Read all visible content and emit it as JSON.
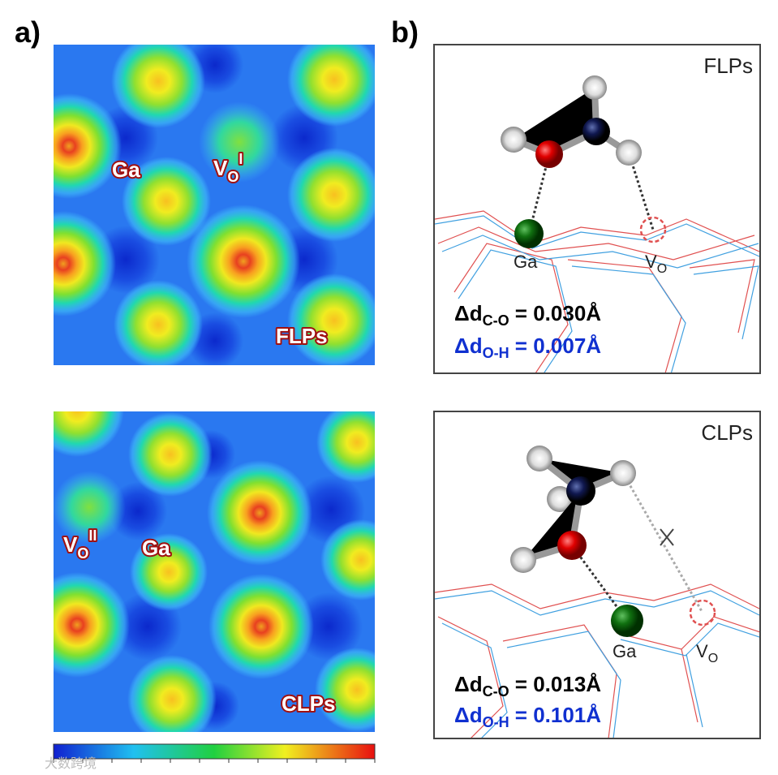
{
  "panel_a": {
    "label": "a)",
    "top": {
      "ga": "Ga",
      "vacancy": {
        "main": "V",
        "sub": "O",
        "sup": "I"
      },
      "tag": "FLPs"
    },
    "bottom": {
      "ga": "Ga",
      "vacancy": {
        "main": "V",
        "sub": "O",
        "sup": "II"
      },
      "tag": "CLPs"
    }
  },
  "panel_b": {
    "label": "b)",
    "top": {
      "tag": "FLPs",
      "ga": "Ga",
      "vacancy": {
        "main": "V",
        "sub": "O"
      },
      "d_co": {
        "delta": "Δd",
        "sub": "C-O",
        "value": " = 0.030Å"
      },
      "d_oh": {
        "delta": "Δd",
        "sub": "O-H",
        "value": " = 0.007Å"
      }
    },
    "bottom": {
      "tag": "CLPs",
      "ga": "Ga",
      "vacancy": {
        "main": "V",
        "sub": "O"
      },
      "d_co": {
        "delta": "Δd",
        "sub": "C-O",
        "value": " = 0.013Å"
      },
      "d_oh": {
        "delta": "Δd",
        "sub": "O-H",
        "value": " = 0.101Å"
      }
    }
  },
  "watermark": "大数跨境"
}
